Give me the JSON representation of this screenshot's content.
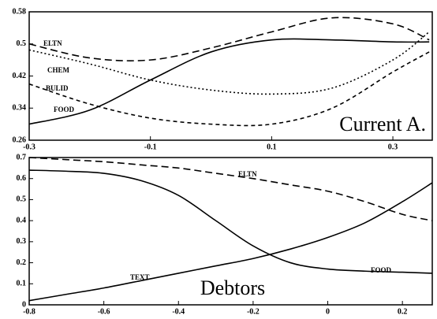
{
  "chart_data": [
    {
      "type": "line",
      "title": "Current A.",
      "x": [
        -0.3,
        -0.2,
        -0.1,
        0,
        0.1,
        0.2,
        0.3,
        0.36
      ],
      "xlim": [
        -0.3,
        0.365
      ],
      "xticks": [
        -0.3,
        -0.1,
        0.1,
        0.3
      ],
      "ylim": [
        0.26,
        0.58
      ],
      "yticks": [
        0.26,
        0.34,
        0.42,
        0.5,
        0.58
      ],
      "series": [
        {
          "name": "ELTN",
          "color": "#000000",
          "dash": "9,5",
          "values": [
            0.5,
            0.465,
            0.46,
            0.49,
            0.53,
            0.565,
            0.55,
            0.51
          ]
        },
        {
          "name": "CHEM",
          "color": "#000000",
          "dash": "2,3",
          "values": [
            0.485,
            0.45,
            0.41,
            0.385,
            0.375,
            0.39,
            0.46,
            0.53
          ]
        },
        {
          "name": "BULID",
          "color": "#000000",
          "dash": "5,4",
          "values": [
            0.4,
            0.35,
            0.315,
            0.3,
            0.3,
            0.34,
            0.43,
            0.48
          ]
        },
        {
          "name": "FOOD",
          "color": "#000000",
          "dash": "none",
          "values": [
            0.3,
            0.335,
            0.41,
            0.48,
            0.51,
            0.51,
            0.505,
            0.505
          ]
        }
      ]
    },
    {
      "type": "line",
      "title": "Debtors",
      "x": [
        -0.8,
        -0.7,
        -0.6,
        -0.5,
        -0.4,
        -0.3,
        -0.2,
        -0.1,
        0,
        0.1,
        0.2,
        0.28
      ],
      "xlim": [
        -0.8,
        0.28
      ],
      "xticks": [
        -0.8,
        -0.6,
        -0.4,
        -0.2,
        0,
        0.2
      ],
      "ylim": [
        0,
        0.7
      ],
      "yticks": [
        0,
        0.1,
        0.2,
        0.3,
        0.4,
        0.5,
        0.6,
        0.7
      ],
      "series": [
        {
          "name": "ELTN",
          "color": "#000000",
          "dash": "9,5",
          "values": [
            0.7,
            0.69,
            0.68,
            0.665,
            0.65,
            0.625,
            0.6,
            0.57,
            0.54,
            0.49,
            0.43,
            0.4
          ]
        },
        {
          "name": "FOOD",
          "color": "#000000",
          "dash": "none",
          "values": [
            0.64,
            0.635,
            0.625,
            0.59,
            0.52,
            0.4,
            0.28,
            0.2,
            0.17,
            0.16,
            0.155,
            0.15
          ]
        },
        {
          "name": "TEXT",
          "color": "#000000",
          "dash": "none",
          "values": [
            0.02,
            0.05,
            0.08,
            0.115,
            0.15,
            0.185,
            0.22,
            0.265,
            0.32,
            0.39,
            0.49,
            0.58
          ]
        }
      ]
    }
  ]
}
